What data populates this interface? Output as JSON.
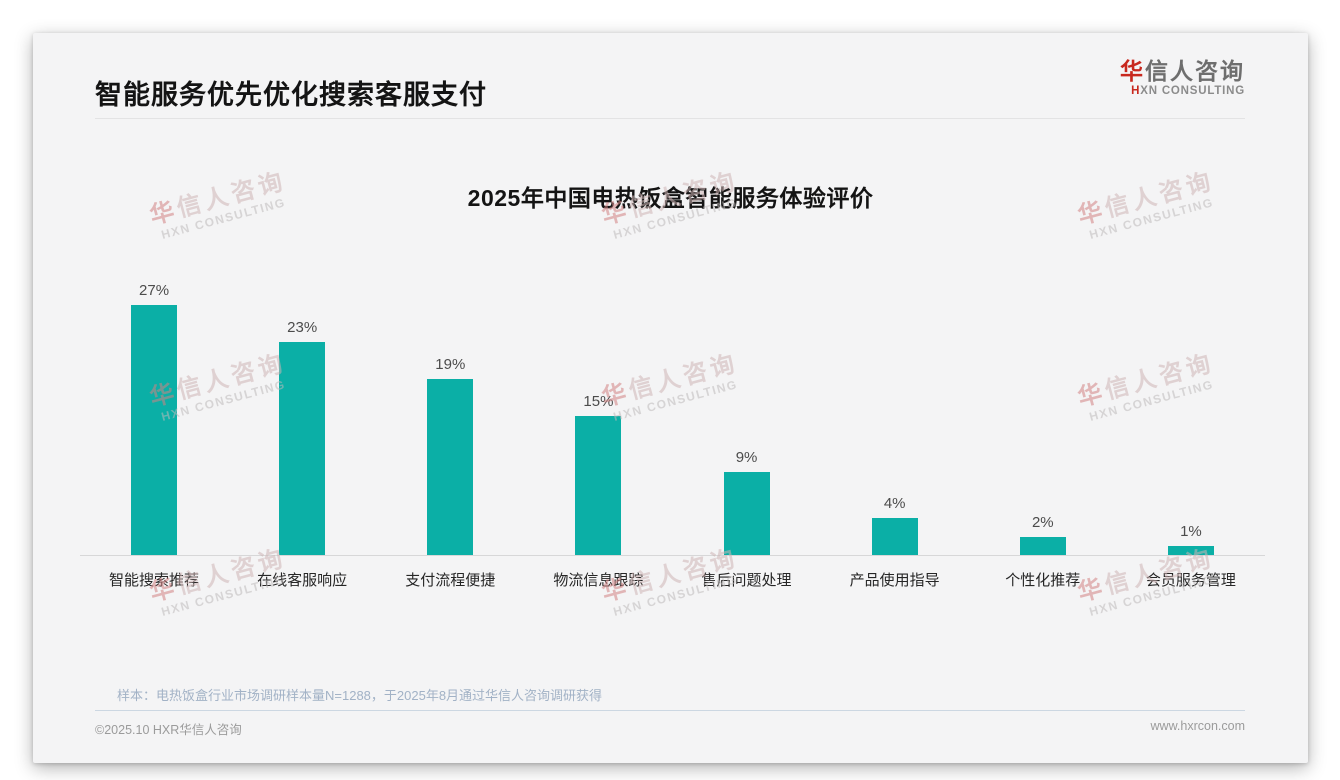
{
  "header": {
    "title": "智能服务优先优化搜索客服支付"
  },
  "logo": {
    "zh_accent": "华",
    "zh_rest": "信人咨询",
    "en_accent": "H",
    "en_rest": "XN CONSULTING"
  },
  "watermark": {
    "zh_accent": "华",
    "zh_rest": "信人咨询",
    "en": "HXN CONSULTING"
  },
  "chart_data": {
    "type": "bar",
    "title": "2025年中国电热饭盒智能服务体验评价",
    "categories": [
      "智能搜索推荐",
      "在线客服响应",
      "支付流程便捷",
      "物流信息跟踪",
      "售后问题处理",
      "产品使用指导",
      "个性化推荐",
      "会员服务管理"
    ],
    "values": [
      27,
      23,
      19,
      15,
      9,
      4,
      2,
      1
    ],
    "value_labels": [
      "27%",
      "23%",
      "19%",
      "15%",
      "9%",
      "4%",
      "2%",
      "1%"
    ],
    "xlabel": "",
    "ylabel": "",
    "ylim": [
      0,
      30
    ],
    "grid": false,
    "legend": false,
    "bar_color": "#0bafa6"
  },
  "notes": {
    "sample": "样本：电热饭盒行业市场调研样本量N=1288，于2025年8月通过华信人咨询调研获得"
  },
  "footer": {
    "left": "©2025.10 HXR华信人咨询",
    "right": "www.hxrcon.com"
  },
  "colors": {
    "bar": "#0bafa6",
    "brand_red": "#c8281e",
    "card_bg": "#f4f4f5",
    "note_text": "#a2b2c6"
  }
}
